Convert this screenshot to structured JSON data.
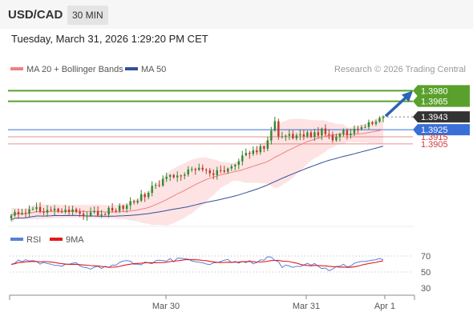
{
  "header": {
    "symbol": "USD/CAD",
    "timeframe": "30 MIN",
    "datetime": "Tuesday, March 31, 2026 1:29:20 PM CET"
  },
  "legend": {
    "bollinger": "MA 20 + Bollinger Bands",
    "ma50": "MA 50",
    "credit": "Research © 2026 Trading Central",
    "rsi": "RSI",
    "rsi_ma": "9MA"
  },
  "colors": {
    "bull": "#2e8b2e",
    "bear": "#c0392b",
    "bollinger": "#f08080",
    "band_fill": "#fde3e3",
    "ma50": "#34509a",
    "resistance": "#5aa02c",
    "support_blue": "#3a6fd8",
    "support_red": "#e06060",
    "current": "#333333",
    "arrow": "#2a64b4"
  },
  "chart_data": [
    {
      "type": "candlestick",
      "ylim": [
        1.379,
        1.3995
      ],
      "x_labels": [
        "Mar 30",
        "Mar 31",
        "Apr 1"
      ],
      "levels": [
        {
          "name": "resistance-2",
          "value": 1.398,
          "label": "1.3980",
          "style": "green-box"
        },
        {
          "name": "resistance-1",
          "value": 1.3965,
          "label": "1.3965",
          "style": "green-box"
        },
        {
          "name": "current",
          "value": 1.3943,
          "label": "1.3943",
          "style": "dark-box"
        },
        {
          "name": "pivot",
          "value": 1.3925,
          "label": "1.3925",
          "style": "blue-box"
        },
        {
          "name": "support-1",
          "value": 1.3915,
          "label": "1.3915",
          "style": "red-text"
        },
        {
          "name": "support-2",
          "value": 1.3905,
          "label": "1.3905",
          "style": "red-text"
        }
      ],
      "anchors": [
        [
          0,
          1.3805
        ],
        [
          6,
          1.3815
        ],
        [
          12,
          1.381
        ],
        [
          20,
          1.3808
        ],
        [
          27,
          1.381
        ],
        [
          31,
          1.3815
        ],
        [
          36,
          1.383
        ],
        [
          40,
          1.3848
        ],
        [
          45,
          1.3862
        ],
        [
          50,
          1.3868
        ],
        [
          56,
          1.3865
        ],
        [
          60,
          1.3872
        ],
        [
          65,
          1.3888
        ],
        [
          70,
          1.39
        ],
        [
          72,
          1.3922
        ],
        [
          75,
          1.3918
        ],
        [
          80,
          1.3915
        ],
        [
          86,
          1.3922
        ],
        [
          89,
          1.3912
        ],
        [
          93,
          1.3922
        ],
        [
          98,
          1.3932
        ],
        [
          103,
          1.3943
        ]
      ],
      "spike": [
        73,
        1.3937
      ],
      "candle_count": 104
    },
    {
      "type": "line",
      "name": "RSI",
      "ylim": [
        20,
        80
      ],
      "yticks": [
        70,
        50,
        30
      ],
      "anchors": [
        [
          0,
          62
        ],
        [
          5,
          64
        ],
        [
          10,
          59
        ],
        [
          14,
          57
        ],
        [
          18,
          60
        ],
        [
          23,
          54
        ],
        [
          27,
          58
        ],
        [
          32,
          63
        ],
        [
          38,
          60
        ],
        [
          42,
          64
        ],
        [
          47,
          66
        ],
        [
          51,
          63
        ],
        [
          55,
          58
        ],
        [
          60,
          64
        ],
        [
          64,
          61
        ],
        [
          69,
          63
        ],
        [
          72,
          71
        ],
        [
          75,
          56
        ],
        [
          80,
          58
        ],
        [
          84,
          61
        ],
        [
          88,
          51
        ],
        [
          91,
          57
        ],
        [
          95,
          60
        ],
        [
          99,
          64
        ],
        [
          103,
          66
        ]
      ]
    }
  ]
}
